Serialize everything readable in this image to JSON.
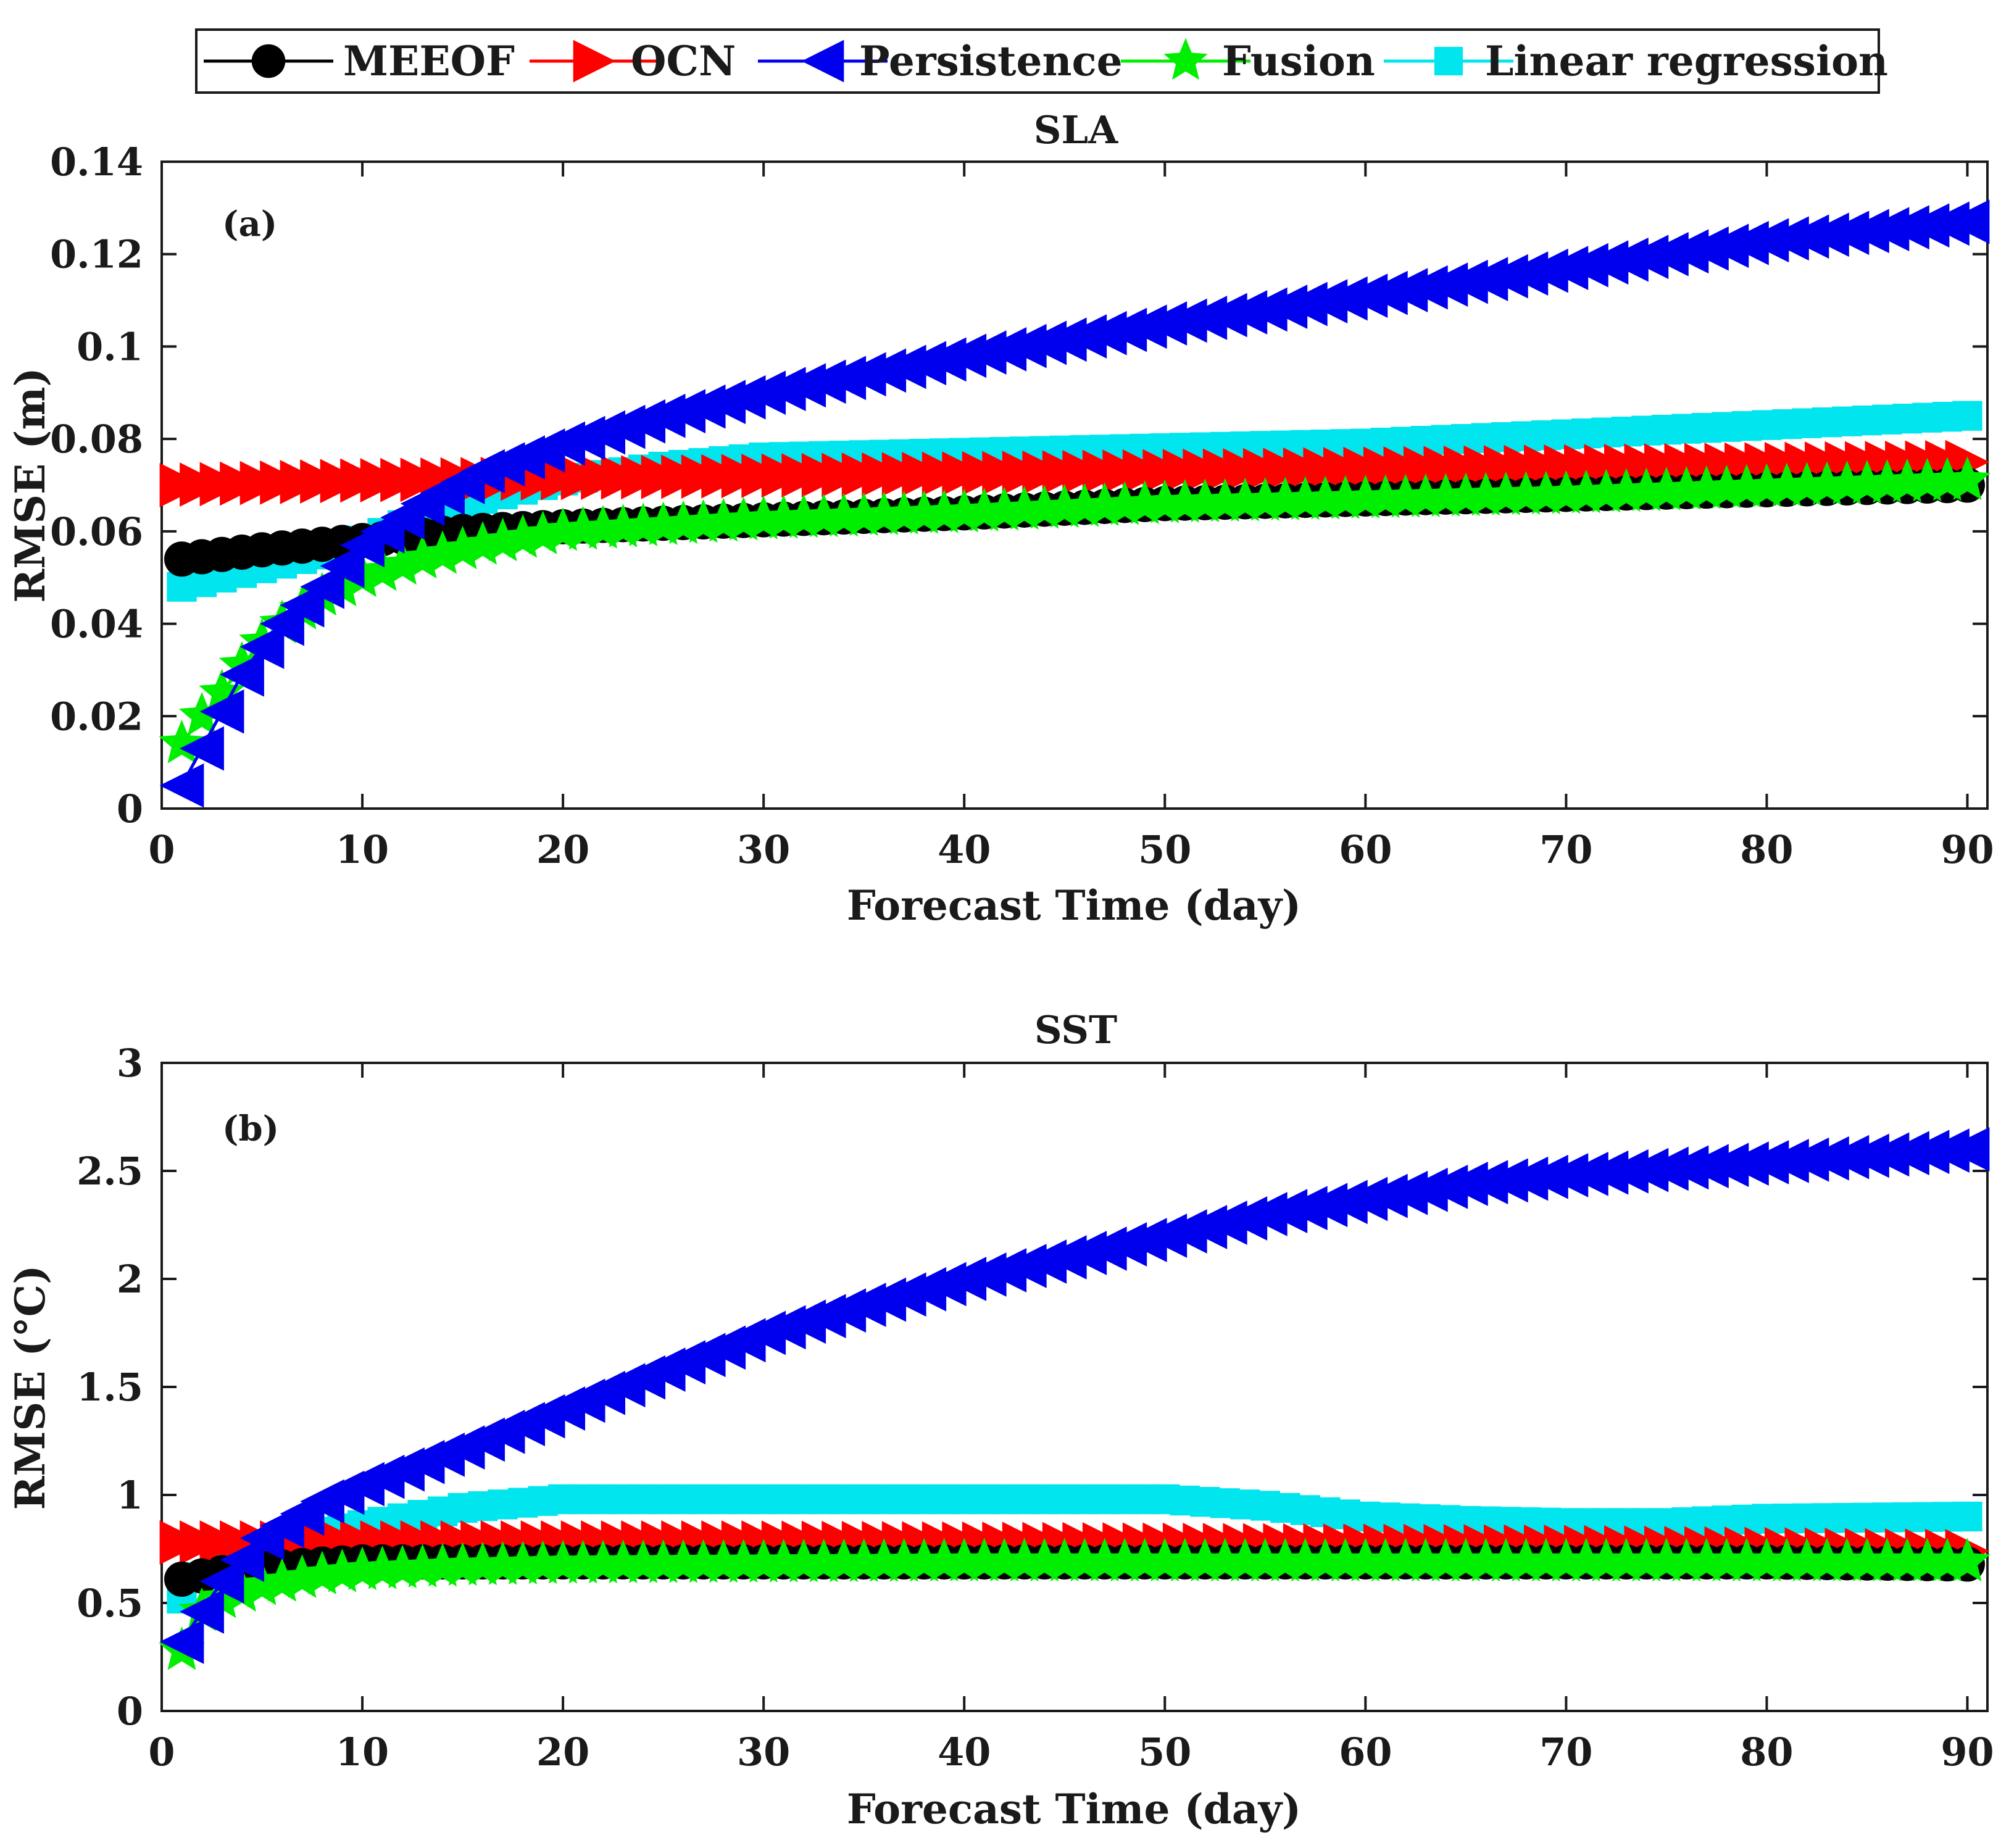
{
  "legend": {
    "entries": [
      {
        "name": "MEEOF",
        "color": "#000000",
        "marker": "circle"
      },
      {
        "name": "OCN",
        "color": "#ff0000",
        "marker": "triangle-right"
      },
      {
        "name": "Persistence",
        "color": "#0000ee",
        "marker": "triangle-left"
      },
      {
        "name": "Fusion",
        "color": "#00ee00",
        "marker": "star"
      },
      {
        "name": "Linear regression",
        "color": "#00e5ee",
        "marker": "square"
      }
    ]
  },
  "chart_data": [
    {
      "type": "line",
      "title": "SLA",
      "panel_label": "(a)",
      "xlabel": "Forecast Time (day)",
      "ylabel": "RMSE (m)",
      "xlim": [
        0,
        91
      ],
      "ylim": [
        0,
        0.14
      ],
      "xticks": [
        0,
        10,
        20,
        30,
        40,
        50,
        60,
        70,
        80,
        90
      ],
      "yticks": [
        0,
        0.02,
        0.04,
        0.06,
        0.08,
        0.1,
        0.12,
        0.14
      ],
      "x_range": [
        1,
        90
      ],
      "series": [
        {
          "name": "MEEOF",
          "anchors": [
            [
              1,
              0.054
            ],
            [
              3,
              0.055
            ],
            [
              5,
              0.056
            ],
            [
              10,
              0.058
            ],
            [
              15,
              0.06
            ],
            [
              20,
              0.061
            ],
            [
              30,
              0.0625
            ],
            [
              40,
              0.064
            ],
            [
              50,
              0.066
            ],
            [
              60,
              0.067
            ],
            [
              70,
              0.068
            ],
            [
              80,
              0.069
            ],
            [
              90,
              0.07
            ]
          ]
        },
        {
          "name": "OCN",
          "anchors": [
            [
              1,
              0.07
            ],
            [
              10,
              0.071
            ],
            [
              20,
              0.0715
            ],
            [
              30,
              0.072
            ],
            [
              40,
              0.0725
            ],
            [
              50,
              0.073
            ],
            [
              60,
              0.0735
            ],
            [
              70,
              0.074
            ],
            [
              80,
              0.0745
            ],
            [
              90,
              0.075
            ]
          ]
        },
        {
          "name": "Persistence",
          "anchors": [
            [
              1,
              0.005
            ],
            [
              2,
              0.013
            ],
            [
              3,
              0.021
            ],
            [
              4,
              0.029
            ],
            [
              5,
              0.035
            ],
            [
              6,
              0.04
            ],
            [
              8,
              0.048
            ],
            [
              10,
              0.057
            ],
            [
              13,
              0.066
            ],
            [
              16,
              0.073
            ],
            [
              20,
              0.079
            ],
            [
              25,
              0.085
            ],
            [
              30,
              0.09
            ],
            [
              40,
              0.098
            ],
            [
              50,
              0.105
            ],
            [
              60,
              0.111
            ],
            [
              70,
              0.117
            ],
            [
              80,
              0.123
            ],
            [
              90,
              0.127
            ]
          ]
        },
        {
          "name": "Fusion",
          "anchors": [
            [
              1,
              0.014
            ],
            [
              2,
              0.02
            ],
            [
              3,
              0.025
            ],
            [
              4,
              0.031
            ],
            [
              5,
              0.036
            ],
            [
              6,
              0.04
            ],
            [
              8,
              0.046
            ],
            [
              10,
              0.05
            ],
            [
              13,
              0.054
            ],
            [
              16,
              0.057
            ],
            [
              20,
              0.06
            ],
            [
              30,
              0.0625
            ],
            [
              40,
              0.064
            ],
            [
              50,
              0.066
            ],
            [
              60,
              0.067
            ],
            [
              70,
              0.068
            ],
            [
              80,
              0.0695
            ],
            [
              90,
              0.071
            ]
          ]
        },
        {
          "name": "Linear regression",
          "anchors": [
            [
              1,
              0.048
            ],
            [
              3,
              0.05
            ],
            [
              5,
              0.052
            ],
            [
              8,
              0.055
            ],
            [
              10,
              0.058
            ],
            [
              13,
              0.063
            ],
            [
              16,
              0.067
            ],
            [
              20,
              0.071
            ],
            [
              25,
              0.074
            ],
            [
              30,
              0.076
            ],
            [
              40,
              0.077
            ],
            [
              50,
              0.078
            ],
            [
              60,
              0.079
            ],
            [
              70,
              0.081
            ],
            [
              80,
              0.083
            ],
            [
              90,
              0.085
            ]
          ]
        }
      ]
    },
    {
      "type": "line",
      "title": "SST",
      "panel_label": "(b)",
      "xlabel": "Forecast Time (day)",
      "ylabel": "RMSE (°C)",
      "xlim": [
        0,
        91
      ],
      "ylim": [
        0,
        3
      ],
      "xticks": [
        0,
        10,
        20,
        30,
        40,
        50,
        60,
        70,
        80,
        90
      ],
      "yticks": [
        0,
        0.5,
        1,
        1.5,
        2,
        2.5,
        3
      ],
      "ytick_labels": [
        "0",
        "0.5",
        "1",
        "1.5",
        "2",
        "2.5",
        "3"
      ],
      "x_range": [
        1,
        90
      ],
      "series": [
        {
          "name": "MEEOF",
          "anchors": [
            [
              1,
              0.61
            ],
            [
              3,
              0.64
            ],
            [
              5,
              0.66
            ],
            [
              8,
              0.68
            ],
            [
              10,
              0.69
            ],
            [
              20,
              0.69
            ],
            [
              40,
              0.69
            ],
            [
              60,
              0.69
            ],
            [
              80,
              0.69
            ],
            [
              90,
              0.68
            ]
          ]
        },
        {
          "name": "OCN",
          "anchors": [
            [
              1,
              0.78
            ],
            [
              10,
              0.78
            ],
            [
              30,
              0.78
            ],
            [
              50,
              0.77
            ],
            [
              70,
              0.76
            ],
            [
              90,
              0.74
            ]
          ]
        },
        {
          "name": "Persistence",
          "anchors": [
            [
              1,
              0.32
            ],
            [
              3,
              0.6
            ],
            [
              5,
              0.8
            ],
            [
              8,
              0.97
            ],
            [
              10,
              1.05
            ],
            [
              15,
              1.22
            ],
            [
              20,
              1.4
            ],
            [
              25,
              1.58
            ],
            [
              30,
              1.75
            ],
            [
              35,
              1.88
            ],
            [
              40,
              2.0
            ],
            [
              45,
              2.1
            ],
            [
              50,
              2.2
            ],
            [
              55,
              2.3
            ],
            [
              60,
              2.37
            ],
            [
              65,
              2.44
            ],
            [
              70,
              2.48
            ],
            [
              80,
              2.54
            ],
            [
              90,
              2.6
            ]
          ]
        },
        {
          "name": "Fusion",
          "anchors": [
            [
              1,
              0.28
            ],
            [
              2,
              0.46
            ],
            [
              3,
              0.52
            ],
            [
              5,
              0.58
            ],
            [
              8,
              0.63
            ],
            [
              10,
              0.65
            ],
            [
              15,
              0.67
            ],
            [
              20,
              0.68
            ],
            [
              40,
              0.69
            ],
            [
              60,
              0.69
            ],
            [
              80,
              0.69
            ],
            [
              90,
              0.69
            ]
          ]
        },
        {
          "name": "Linear regression",
          "anchors": [
            [
              1,
              0.52
            ],
            [
              2,
              0.62
            ],
            [
              4,
              0.72
            ],
            [
              6,
              0.8
            ],
            [
              10,
              0.86
            ],
            [
              15,
              0.94
            ],
            [
              20,
              0.98
            ],
            [
              30,
              0.98
            ],
            [
              40,
              0.98
            ],
            [
              50,
              0.98
            ],
            [
              55,
              0.95
            ],
            [
              60,
              0.9
            ],
            [
              65,
              0.88
            ],
            [
              70,
              0.87
            ],
            [
              75,
              0.87
            ],
            [
              80,
              0.89
            ],
            [
              90,
              0.9
            ]
          ]
        }
      ]
    }
  ]
}
